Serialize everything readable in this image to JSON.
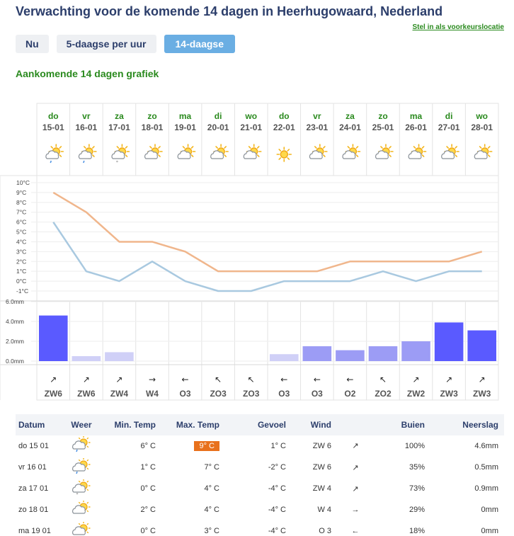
{
  "page": {
    "title": "Verwachting voor de komende 14 dagen in Heerhugowaard, Nederland",
    "preferred_location_link": "Stel in als voorkeurslocatie",
    "graph_title": "Aankomende 14 dagen grafiek"
  },
  "tabs": [
    {
      "label": "Nu",
      "active": false
    },
    {
      "label": "5-daagse per uur",
      "active": false
    },
    {
      "label": "14-daagse",
      "active": true
    }
  ],
  "colors": {
    "max_temp_line": "#f0b68c",
    "min_temp_line": "#a9c9e0",
    "heavy_rain_bar": "#5a5aff",
    "medium_rain_bar": "#9c9cf5",
    "light_rain_bar": "#d0d0f7",
    "day_text": "#2a8a1e",
    "highlight": "#e8711c"
  },
  "chart_data": {
    "type": "line",
    "x": [
      "15-01",
      "16-01",
      "17-01",
      "18-01",
      "19-01",
      "20-01",
      "21-01",
      "22-01",
      "23-01",
      "24-01",
      "25-01",
      "26-01",
      "27-01",
      "28-01"
    ],
    "day_names": [
      "do",
      "vr",
      "za",
      "zo",
      "ma",
      "di",
      "wo",
      "do",
      "vr",
      "za",
      "zo",
      "ma",
      "di",
      "wo"
    ],
    "icons": [
      "sun-cloud-rain-icon",
      "sun-cloud-rain-icon",
      "sun-cloud-snow-icon",
      "sun-cloud-icon",
      "sun-cloud-icon",
      "sun-cloud-icon",
      "sun-cloud-icon",
      "sun-icon",
      "sun-cloud-icon",
      "sun-cloud-icon",
      "sun-cloud-icon",
      "sun-cloud-icon",
      "sun-cloud-icon",
      "sun-cloud-icon"
    ],
    "series": [
      {
        "key": "max",
        "values": [
          9,
          7,
          4,
          4,
          3,
          1,
          1,
          1,
          1,
          2,
          2,
          2,
          2,
          3
        ]
      },
      {
        "key": "min",
        "values": [
          6,
          1,
          0,
          2,
          0,
          -1,
          -1,
          0,
          0,
          0,
          1,
          0,
          1,
          1
        ]
      }
    ],
    "temp_ticks": [
      "10°C",
      "9°C",
      "8°C",
      "7°C",
      "6°C",
      "5°C",
      "4°C",
      "3°C",
      "2°C",
      "1°C",
      "0°C",
      "-1°C"
    ],
    "ylim": [
      -1,
      10
    ],
    "precipitation": {
      "values": [
        4.6,
        0.5,
        0.9,
        0,
        0,
        0,
        0,
        0.7,
        1.5,
        1.1,
        1.5,
        2.0,
        3.9,
        3.1
      ],
      "ticks": [
        "6.0mm",
        "4.0mm",
        "2.0mm",
        "0.0mm"
      ],
      "ylim": [
        0,
        6
      ]
    },
    "wind": {
      "directions": [
        "ZW6",
        "ZW6",
        "ZW4",
        "W4",
        "O3",
        "ZO3",
        "ZO3",
        "O3",
        "O3",
        "O2",
        "ZO2",
        "ZW2",
        "ZW3",
        "ZW3"
      ],
      "arrows": [
        "↗",
        "↗",
        "↗",
        "→",
        "←",
        "↖",
        "↖",
        "←",
        "←",
        "←",
        "↖",
        "↗",
        "↗",
        "↗"
      ]
    }
  },
  "table": {
    "headers": [
      "Datum",
      "Weer",
      "Min. Temp",
      "Max. Temp",
      "Gevoel",
      "Wind",
      "",
      "Buien",
      "Neerslag"
    ],
    "rows": [
      {
        "date": "do 15 01",
        "icon": "sun-cloud-rain-icon",
        "min": "6° C",
        "max": "9° C",
        "max_highlight": true,
        "feel": "1° C",
        "wind": "ZW 6",
        "arrow": "↗",
        "showers": "100%",
        "precip": "4.6mm"
      },
      {
        "date": "vr 16 01",
        "icon": "sun-cloud-rain-icon",
        "min": "1° C",
        "max": "7° C",
        "max_highlight": false,
        "feel": "-2° C",
        "wind": "ZW 6",
        "arrow": "↗",
        "showers": "35%",
        "precip": "0.5mm"
      },
      {
        "date": "za 17 01",
        "icon": "sun-cloud-snow-icon",
        "min": "0° C",
        "max": "4° C",
        "max_highlight": false,
        "feel": "-4° C",
        "wind": "ZW 4",
        "arrow": "↗",
        "showers": "73%",
        "precip": "0.9mm"
      },
      {
        "date": "zo 18 01",
        "icon": "sun-cloud-icon",
        "min": "2° C",
        "max": "4° C",
        "max_highlight": false,
        "feel": "-4° C",
        "wind": "W 4",
        "arrow": "→",
        "showers": "29%",
        "precip": "0mm"
      },
      {
        "date": "ma 19 01",
        "icon": "sun-cloud-icon",
        "min": "0° C",
        "max": "3° C",
        "max_highlight": false,
        "feel": "-4° C",
        "wind": "O 3",
        "arrow": "←",
        "showers": "18%",
        "precip": "0mm"
      }
    ]
  }
}
